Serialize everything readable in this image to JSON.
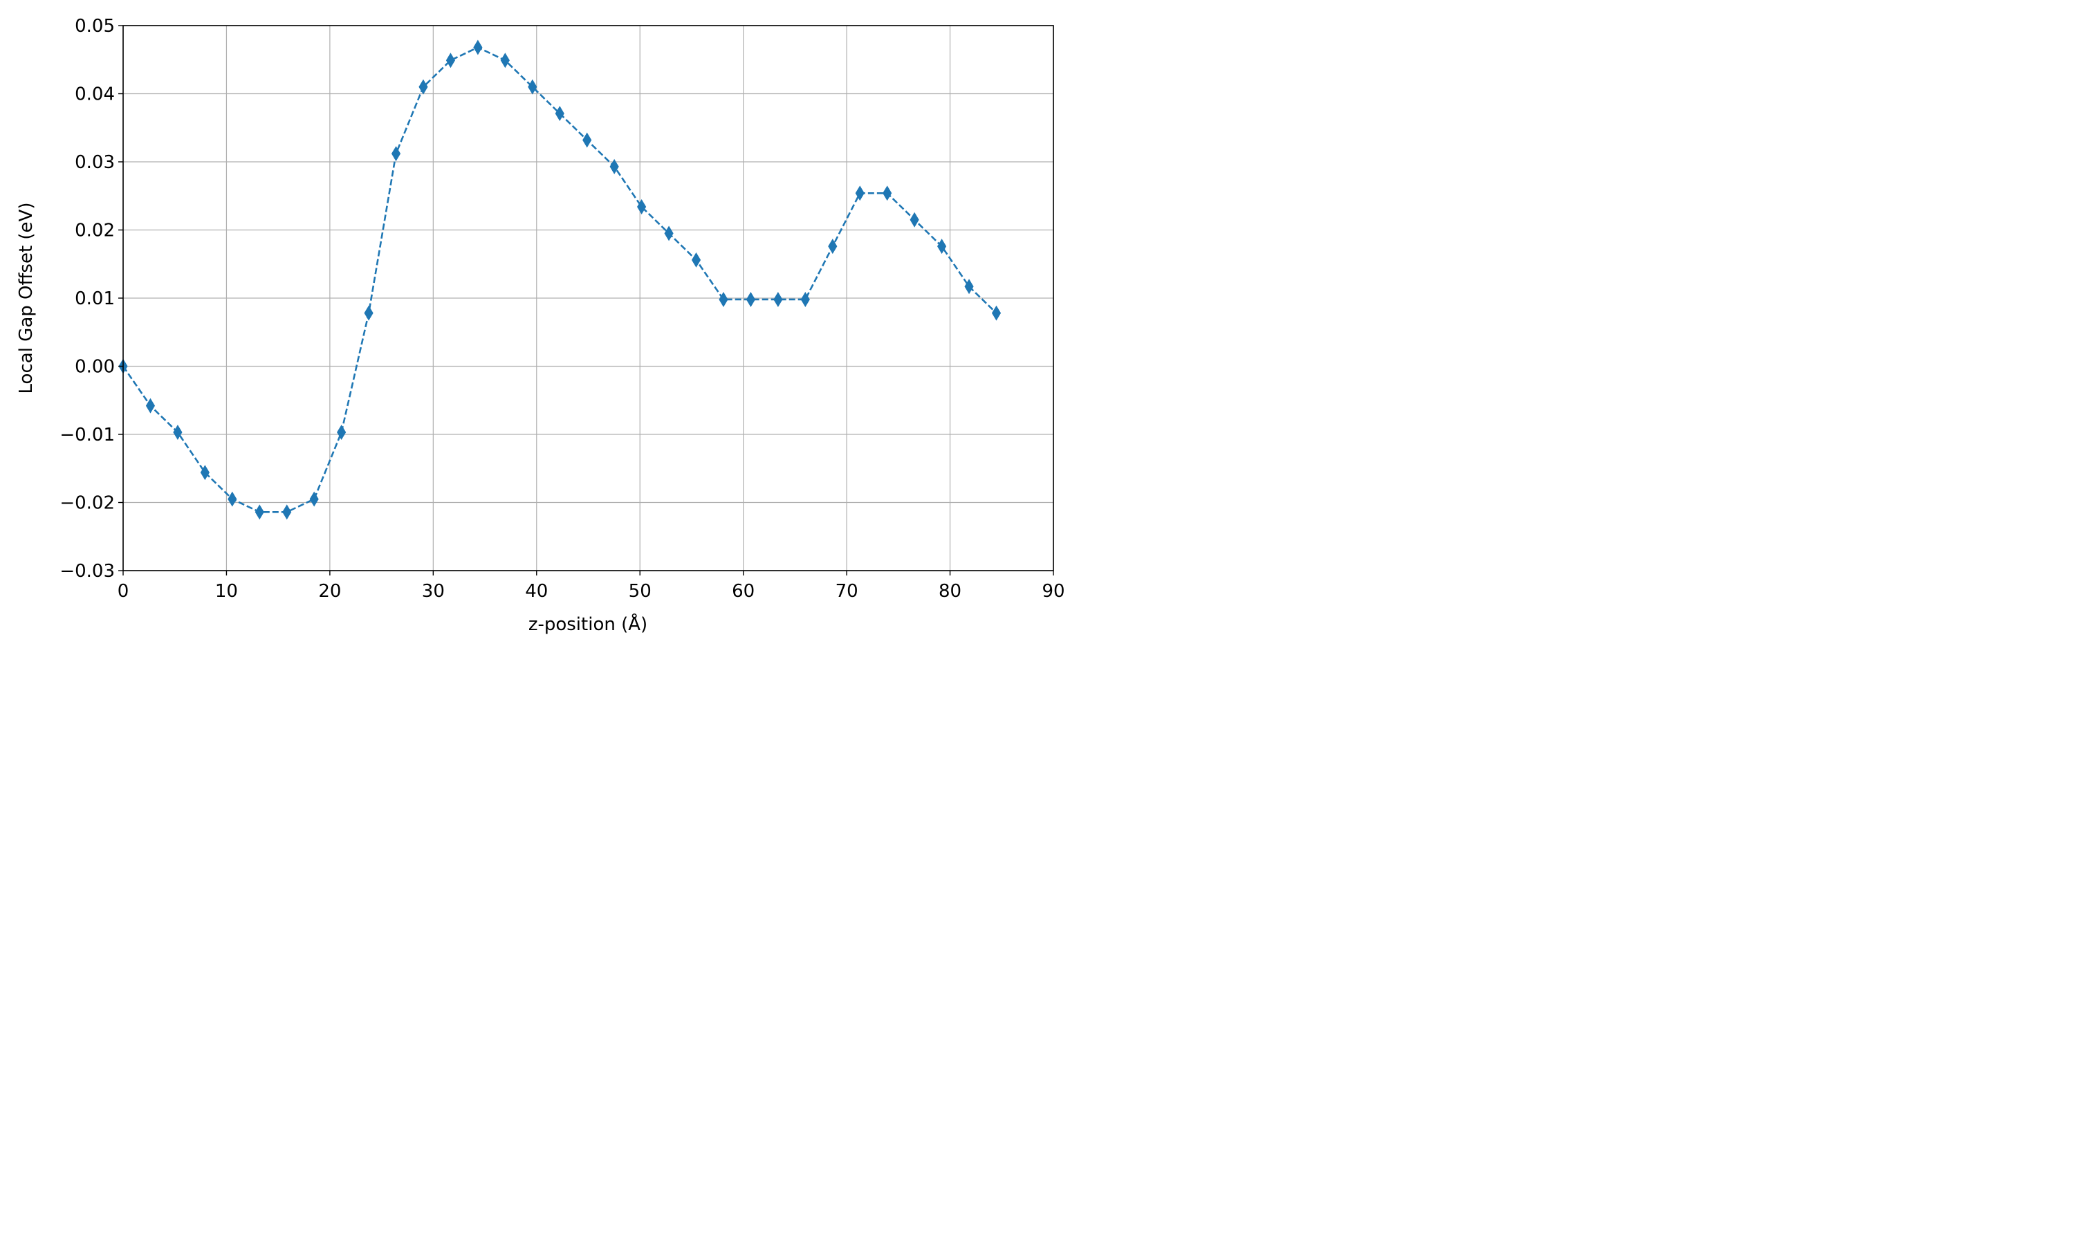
{
  "chart_data": {
    "type": "line",
    "title": "",
    "xlabel": "z-position (Å)",
    "ylabel": "Local Gap Offset (eV)",
    "xlim": [
      0,
      90
    ],
    "ylim": [
      -0.03,
      0.05
    ],
    "x_ticks": [
      0,
      10,
      20,
      30,
      40,
      50,
      60,
      70,
      80,
      90
    ],
    "x_tick_labels": [
      "0",
      "10",
      "20",
      "30",
      "40",
      "50",
      "60",
      "70",
      "80",
      "90"
    ],
    "y_ticks": [
      -0.03,
      -0.02,
      -0.01,
      0.0,
      0.01,
      0.02,
      0.03,
      0.04,
      0.05
    ],
    "y_tick_labels": [
      "−0.03",
      "−0.02",
      "−0.01",
      "0.00",
      "0.01",
      "0.02",
      "0.03",
      "0.04",
      "0.05"
    ],
    "grid": true,
    "series": [
      {
        "color": "#1f77b4",
        "line_style": "dashed",
        "marker": "thin_diamond",
        "x": [
          0.0,
          2.64,
          5.28,
          7.92,
          10.56,
          13.2,
          15.84,
          18.48,
          21.12,
          23.76,
          26.4,
          29.04,
          31.68,
          34.32,
          36.96,
          39.6,
          42.24,
          44.88,
          47.52,
          50.16,
          52.8,
          55.44,
          58.08,
          60.72,
          63.36,
          66.0,
          68.64,
          71.28,
          73.92,
          76.56,
          79.2,
          81.84,
          84.48
        ],
        "y": [
          0.0,
          -0.0058,
          -0.0097,
          -0.0156,
          -0.0195,
          -0.0214,
          -0.0214,
          -0.0195,
          -0.0097,
          0.0078,
          0.0312,
          0.041,
          0.0449,
          0.0468,
          0.0449,
          0.041,
          0.0371,
          0.0332,
          0.0293,
          0.0234,
          0.0195,
          0.0156,
          0.0098,
          0.0098,
          0.0098,
          0.0098,
          0.0176,
          0.0254,
          0.0254,
          0.0215,
          0.0176,
          0.0117,
          0.0078
        ]
      }
    ]
  }
}
